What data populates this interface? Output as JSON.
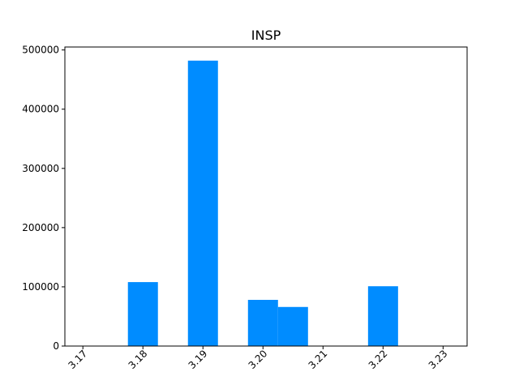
{
  "chart_data": {
    "type": "bar",
    "title": "INSP",
    "xlabel": "",
    "ylabel": "",
    "bar_color": "#008cff",
    "xlim": [
      3.167,
      3.234
    ],
    "ylim": [
      0,
      505000
    ],
    "xticks": [
      3.17,
      3.18,
      3.19,
      3.2,
      3.21,
      3.22,
      3.23
    ],
    "xtick_labels": [
      "3.17",
      "3.18",
      "3.19",
      "3.20",
      "3.21",
      "3.22",
      "3.23"
    ],
    "yticks": [
      0,
      100000,
      200000,
      300000,
      400000,
      500000
    ],
    "ytick_labels": [
      "0",
      "100000",
      "200000",
      "300000",
      "400000",
      "500000"
    ],
    "bars": [
      {
        "x0": 3.1775,
        "x1": 3.1825,
        "value": 108000
      },
      {
        "x0": 3.1875,
        "x1": 3.1925,
        "value": 482000
      },
      {
        "x0": 3.1975,
        "x1": 3.2025,
        "value": 78000
      },
      {
        "x0": 3.2025,
        "x1": 3.2075,
        "value": 66000
      },
      {
        "x0": 3.2175,
        "x1": 3.2225,
        "value": 101000
      }
    ]
  }
}
